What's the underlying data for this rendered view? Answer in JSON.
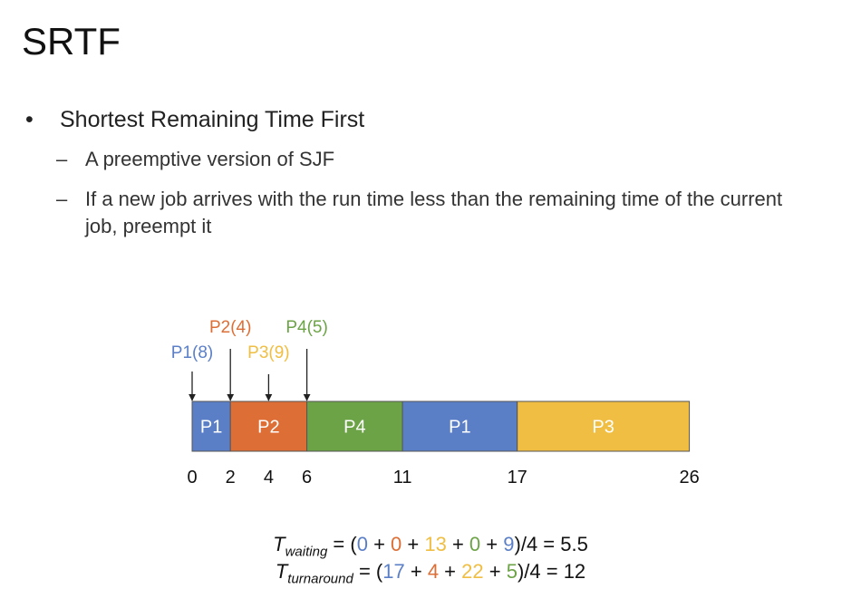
{
  "title": "SRTF",
  "bullets": {
    "main": "Shortest Remaining Time First",
    "subs": [
      "A preemptive version of SJF",
      "If a new job arrives with the run time less than the remaining time of the current job, preempt it"
    ]
  },
  "colors": {
    "P1": "#5b7fc7",
    "P2": "#dd6e35",
    "P3": "#efbe42",
    "P4": "#6ba346"
  },
  "diagram": {
    "segments": [
      {
        "label": "P1",
        "proc": "P1",
        "start": 0,
        "end": 2
      },
      {
        "label": "P2",
        "proc": "P2",
        "start": 2,
        "end": 6
      },
      {
        "label": "P4",
        "proc": "P4",
        "start": 6,
        "end": 11
      },
      {
        "label": "P1",
        "proc": "P1",
        "start": 11,
        "end": 17
      },
      {
        "label": "P3",
        "proc": "P3",
        "start": 17,
        "end": 26
      }
    ],
    "ticks": [
      0,
      2,
      4,
      6,
      11,
      17,
      26
    ],
    "arrivals": [
      {
        "label": "P1(8)",
        "proc": "P1",
        "time": 0,
        "row": 0
      },
      {
        "label": "P2(4)",
        "proc": "P2",
        "time": 2,
        "row": 2
      },
      {
        "label": "P3(9)",
        "proc": "P3",
        "time": 4,
        "row": 1
      },
      {
        "label": "P4(5)",
        "proc": "P4",
        "time": 6,
        "row": 2
      }
    ]
  },
  "formulas": {
    "waiting": {
      "T": "T",
      "sub": "waiting",
      "open": " = (",
      "terms": [
        {
          "v": "0",
          "proc": "P1"
        },
        {
          "v": "0",
          "proc": "P2"
        },
        {
          "v": "13",
          "proc": "P3"
        },
        {
          "v": "0",
          "proc": "P4"
        },
        {
          "v": "9",
          "proc": "P1"
        }
      ],
      "close": ")/4 = 5.5"
    },
    "turnaround": {
      "T": "T",
      "sub": "turnaround",
      "open": " = (",
      "terms": [
        {
          "v": "17",
          "proc": "P1"
        },
        {
          "v": "4",
          "proc": "P2"
        },
        {
          "v": "22",
          "proc": "P3"
        },
        {
          "v": "5",
          "proc": "P4"
        }
      ],
      "close": ")/4 = 12"
    }
  }
}
